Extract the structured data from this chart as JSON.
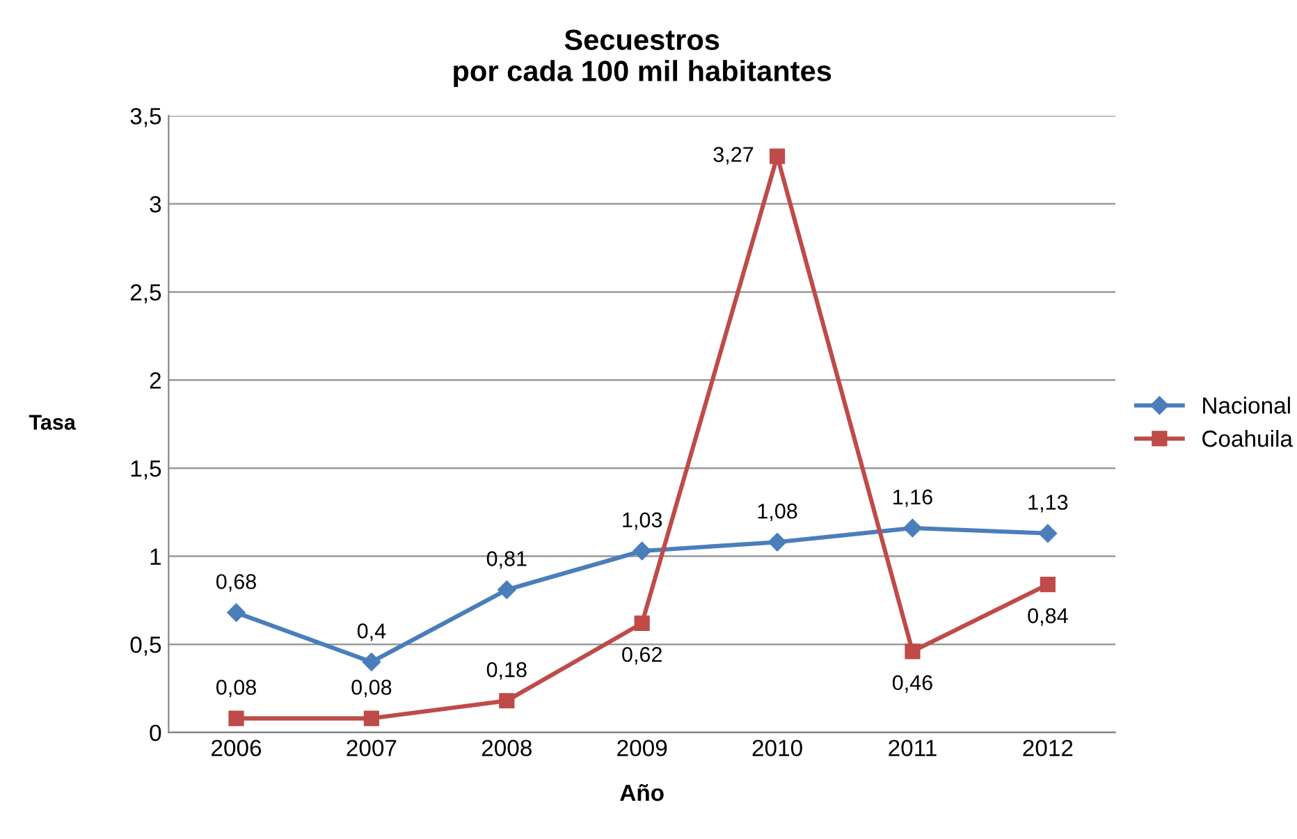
{
  "chart_data": {
    "type": "line",
    "title": "Secuestros\npor cada 100 mil habitantes",
    "xlabel": "Año",
    "ylabel": "Tasa",
    "categories": [
      "2006",
      "2007",
      "2008",
      "2009",
      "2010",
      "2011",
      "2012"
    ],
    "series": [
      {
        "name": "Nacional",
        "color": "#4a7ebb",
        "marker": "diamond",
        "values": [
          0.68,
          0.4,
          0.81,
          1.03,
          1.08,
          1.16,
          1.13
        ],
        "value_labels": [
          "0,68",
          "0,4",
          "0,81",
          "1,03",
          "1,08",
          "1,16",
          "1,13"
        ]
      },
      {
        "name": "Coahuila",
        "color": "#be4b48",
        "marker": "square",
        "values": [
          0.08,
          0.08,
          0.18,
          0.62,
          3.27,
          0.46,
          0.84
        ],
        "value_labels": [
          "0,08",
          "0,08",
          "0,18",
          "0,62",
          "3,27",
          "0,46",
          "0,84"
        ]
      }
    ],
    "ylim": [
      0,
      3.5
    ],
    "yticks": [
      0,
      {
        "value": 0.5,
        "label": "0,5"
      },
      1,
      {
        "value": 1.5,
        "label": "1,5"
      },
      2,
      {
        "value": 2.5,
        "label": "2,5"
      },
      3,
      {
        "value": 3.5,
        "label": "3,5"
      }
    ],
    "grid": "y",
    "legend": "right",
    "line_style": "solid"
  }
}
